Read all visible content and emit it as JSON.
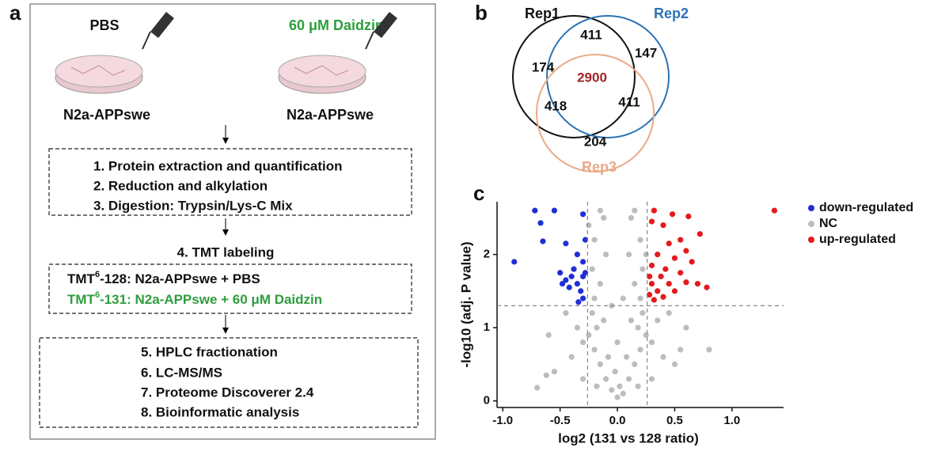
{
  "panel_a": {
    "label": "a",
    "left_condition": "PBS",
    "right_condition": "60 μM Daidzin",
    "right_color": "#2e9e3e",
    "left_cell": "N2a-APPswe",
    "right_cell": "N2a-APPswe",
    "steps_1": [
      "1. Protein extraction and quantification",
      "2. Reduction and alkylation",
      "3. Digestion: Trypsin/Lys-C Mix"
    ],
    "step_4": "4. TMT labeling",
    "tmt": [
      {
        "prefix": "TMT",
        "superscript": "6",
        "rest": "-128: N2a-APPswe + PBS"
      },
      {
        "prefix": "TMT",
        "superscript": "6",
        "rest": "-131: N2a-APPswe + 60 μM Daidzin"
      }
    ],
    "steps_2": [
      "5. HPLC fractionation",
      "6. LC-MS/MS",
      "7. Proteome Discoverer 2.4",
      "8. Bioinformatic analysis"
    ]
  },
  "chart_data": [
    {
      "type": "venn",
      "label": "b",
      "sets": [
        {
          "name": "Rep1",
          "color": "#111111"
        },
        {
          "name": "Rep2",
          "color": "#2a73b5"
        },
        {
          "name": "Rep3",
          "color": "#eba987"
        }
      ],
      "values": [
        174,
        411,
        147,
        2900,
        418,
        411,
        204
      ],
      "highlight_color": "#a3232a"
    },
    {
      "type": "scatter",
      "label": "c",
      "xlabel": "log2 (131 vs 128 ratio)",
      "ylabel": "-log10 (adj. P value)",
      "xlim": [
        -1.05,
        1.45
      ],
      "ylim": [
        -0.09,
        2.72
      ],
      "xticks": [
        {
          "value": -1,
          "label": "-1.0"
        },
        {
          "value": -0.5,
          "label": "-0.5"
        },
        {
          "value": 0,
          "label": "0.0"
        },
        {
          "value": 0.5,
          "label": "0.5"
        },
        {
          "value": 1,
          "label": "1.0"
        }
      ],
      "yticks": [
        0,
        1,
        2
      ],
      "thresholds": {
        "x": [
          -0.26,
          0.26
        ],
        "y": 1.3
      },
      "legend": "right",
      "series": [
        {
          "name": "down-regulated",
          "color": "#1f2fd6",
          "x": [
            -0.9,
            -0.72,
            -0.67,
            -0.65,
            -0.55,
            -0.3,
            -0.45,
            -0.35,
            -0.3,
            -0.28,
            -0.5,
            -0.45,
            -0.4,
            -0.35,
            -0.32,
            -0.3,
            -0.34,
            -0.42,
            -0.38,
            -0.3,
            -0.48,
            -0.28
          ],
          "y": [
            1.9,
            2.6,
            2.43,
            2.18,
            2.6,
            2.55,
            2.15,
            2.0,
            1.9,
            2.2,
            1.75,
            1.65,
            1.7,
            1.6,
            1.5,
            1.4,
            1.35,
            1.55,
            1.8,
            1.7,
            1.6,
            1.75
          ]
        },
        {
          "name": "NC",
          "color": "#bdbdbd",
          "x": [
            0,
            0.05,
            -0.05,
            0.1,
            -0.1,
            0.15,
            -0.15,
            0.2,
            -0.2,
            0.02,
            -0.02,
            0.08,
            -0.08,
            0.25,
            -0.25,
            0.18,
            -0.18,
            0.22,
            -0.22,
            0.12,
            -0.12,
            0.2,
            -0.2,
            0.15,
            -0.15,
            0.22,
            -0.22,
            0.1,
            -0.1,
            0.2,
            -0.2,
            0.12,
            -0.12,
            0.15,
            -0.15,
            0.3,
            -0.3,
            0.35,
            -0.35,
            0.4,
            -0.4,
            0.5,
            -0.55,
            0.6,
            -0.6,
            0.8,
            -0.7,
            -0.62,
            0.45,
            -0.45,
            0.3,
            -0.3,
            0.05,
            -0.05,
            0,
            0.25,
            -0.25,
            0.18,
            -0.18,
            0.55
          ],
          "y": [
            0.05,
            0.1,
            0.15,
            0.3,
            0.3,
            0.5,
            0.5,
            0.7,
            0.7,
            0.2,
            0.4,
            0.6,
            0.6,
            0.9,
            0.9,
            1.0,
            1.0,
            1.2,
            1.2,
            1.1,
            1.1,
            1.4,
            1.4,
            1.6,
            1.6,
            1.8,
            1.8,
            2.0,
            2.0,
            2.2,
            2.2,
            2.5,
            2.5,
            2.6,
            2.6,
            0.8,
            0.8,
            1.1,
            1.0,
            0.6,
            0.6,
            0.5,
            0.4,
            1.0,
            0.9,
            0.7,
            0.18,
            0.35,
            1.2,
            1.2,
            0.3,
            0.3,
            1.4,
            1.3,
            0.8,
            2.0,
            2.4,
            0.2,
            0.2,
            0.7
          ]
        },
        {
          "name": "up-regulated",
          "color": "#e41a1c",
          "x": [
            1.37,
            0.62,
            0.48,
            0.32,
            0.3,
            0.4,
            0.72,
            0.55,
            0.45,
            0.6,
            0.35,
            0.5,
            0.65,
            0.3,
            0.42,
            0.55,
            0.38,
            0.3,
            0.7,
            0.78,
            0.45,
            0.35,
            0.28,
            0.32,
            0.4,
            0.5,
            0.28,
            0.6
          ],
          "y": [
            2.6,
            2.52,
            2.55,
            2.6,
            2.45,
            2.4,
            2.28,
            2.2,
            2.15,
            2.05,
            2.0,
            1.95,
            1.9,
            1.85,
            1.8,
            1.75,
            1.7,
            1.6,
            1.6,
            1.55,
            1.6,
            1.5,
            1.45,
            1.38,
            1.42,
            1.5,
            1.7,
            1.62
          ]
        }
      ]
    }
  ]
}
